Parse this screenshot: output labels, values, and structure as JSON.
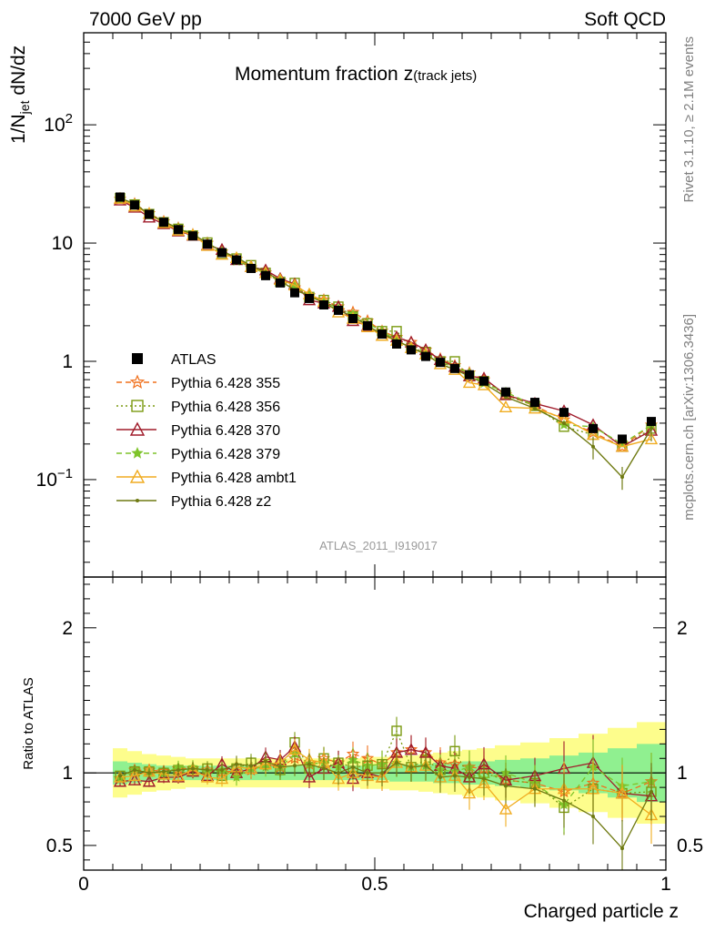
{
  "header": {
    "left": "7000 GeV pp",
    "right": "Soft QCD"
  },
  "side_labels": {
    "rivet": "Rivet 3.1.10, ≥ 2.1M events",
    "mcplots": "mcplots.cern.ch [arXiv:1306.3436]"
  },
  "chart_data": [
    {
      "type": "scatter",
      "title_main": "Momentum fraction",
      "title_sym": "z",
      "title_sub": "(track jets)",
      "ylabel_main": "1/N",
      "ylabel_sub": "jet",
      "ylabel_tail": " dN/dz",
      "watermark": "ATLAS_2011_I919017",
      "yscale": "log",
      "xlim": [
        0,
        1
      ],
      "ylim": [
        0.015,
        600
      ],
      "yticks": [
        {
          "v": 0.1,
          "base": "10",
          "exp": "−1"
        },
        {
          "v": 1,
          "base": "1",
          "exp": ""
        },
        {
          "v": 10,
          "base": "10",
          "exp": ""
        },
        {
          "v": 100,
          "base": "10",
          "exp": "2"
        }
      ],
      "legend_position": "center-left",
      "x": [
        0.0625,
        0.0875,
        0.1125,
        0.1375,
        0.1625,
        0.1875,
        0.2125,
        0.2375,
        0.2625,
        0.2875,
        0.3125,
        0.3375,
        0.3625,
        0.3875,
        0.4125,
        0.4375,
        0.4625,
        0.4875,
        0.5125,
        0.5375,
        0.5625,
        0.5875,
        0.6125,
        0.6375,
        0.6625,
        0.6875,
        0.725,
        0.775,
        0.825,
        0.875,
        0.925,
        0.975
      ],
      "series": [
        {
          "name": "ATLAS",
          "color": "#000000",
          "marker": "square-filled",
          "line": "none",
          "values": [
            24.5,
            21.0,
            17.5,
            15.0,
            13.0,
            11.5,
            9.8,
            8.3,
            7.2,
            6.1,
            5.3,
            4.6,
            3.8,
            3.4,
            3.0,
            2.7,
            2.3,
            2.0,
            1.7,
            1.4,
            1.25,
            1.1,
            0.98,
            0.87,
            0.77,
            0.68,
            0.55,
            0.45,
            0.37,
            0.27,
            0.22,
            0.31
          ]
        },
        {
          "name": "Pythia 6.428 355",
          "color": "#f0701c",
          "marker": "star-open",
          "line": "dashed",
          "values": [
            23.5,
            21.5,
            17.8,
            15.2,
            13.4,
            11.8,
            10.0,
            8.4,
            7.3,
            6.2,
            5.6,
            4.8,
            4.2,
            3.6,
            3.3,
            2.9,
            2.6,
            2.2,
            1.8,
            1.6,
            1.45,
            1.25,
            1.05,
            0.92,
            0.8,
            0.7,
            0.52,
            0.42,
            0.32,
            0.25,
            0.19,
            0.29
          ]
        },
        {
          "name": "Pythia 6.428 356",
          "color": "#7a9a10",
          "marker": "square-open",
          "line": "dotted",
          "values": [
            24.0,
            21.2,
            17.6,
            15.0,
            13.2,
            11.6,
            10.1,
            8.1,
            7.4,
            6.5,
            5.6,
            4.7,
            4.6,
            3.5,
            3.3,
            2.9,
            2.4,
            2.1,
            1.8,
            1.8,
            1.3,
            1.2,
            1.0,
            1.0,
            0.75,
            0.68,
            0.52,
            0.42,
            0.28,
            0.24,
            0.19,
            0.27
          ]
        },
        {
          "name": "Pythia 6.428 370",
          "color": "#a01b2a",
          "marker": "triangle-open",
          "line": "solid",
          "values": [
            23.0,
            20.0,
            16.5,
            14.5,
            12.6,
            11.6,
            9.6,
            8.8,
            7.2,
            6.3,
            5.9,
            5.0,
            4.5,
            3.3,
            3.1,
            2.9,
            2.2,
            2.0,
            1.65,
            1.6,
            1.45,
            1.25,
            1.03,
            0.9,
            0.75,
            0.72,
            0.52,
            0.44,
            0.38,
            0.29,
            0.19,
            0.26
          ]
        },
        {
          "name": "Pythia 6.428 379",
          "color": "#7ec42a",
          "marker": "star-filled",
          "line": "dashed",
          "values": [
            23.5,
            21.5,
            17.5,
            15.0,
            13.5,
            12.0,
            9.9,
            8.5,
            7.0,
            6.3,
            5.5,
            4.8,
            4.3,
            3.6,
            3.2,
            2.8,
            2.5,
            2.1,
            1.8,
            1.5,
            1.3,
            1.15,
            1.0,
            0.88,
            0.8,
            0.65,
            0.55,
            0.42,
            0.29,
            0.28,
            0.2,
            0.29
          ]
        },
        {
          "name": "Pythia 6.428 ambt1",
          "color": "#f0ac20",
          "marker": "triangle-open",
          "line": "solid",
          "values": [
            23.8,
            20.5,
            17.7,
            14.8,
            12.8,
            11.7,
            9.5,
            8.0,
            7.5,
            6.3,
            5.6,
            4.9,
            4.4,
            3.7,
            3.2,
            2.6,
            2.3,
            1.95,
            1.65,
            1.5,
            1.3,
            1.15,
            0.95,
            0.85,
            0.66,
            0.63,
            0.41,
            0.4,
            0.33,
            0.24,
            0.19,
            0.22
          ]
        },
        {
          "name": "Pythia 6.428 z2",
          "color": "#6f7a12",
          "marker": "dot",
          "line": "solid",
          "values": [
            24.0,
            21.5,
            17.5,
            15.2,
            13.2,
            11.9,
            10.0,
            8.5,
            7.6,
            6.4,
            5.7,
            4.8,
            4.0,
            3.6,
            3.1,
            2.7,
            2.4,
            2.0,
            1.7,
            1.5,
            1.3,
            1.15,
            0.95,
            0.85,
            0.75,
            0.65,
            0.5,
            0.4,
            0.3,
            0.19,
            0.105,
            0.27
          ]
        }
      ]
    },
    {
      "type": "scatter",
      "ylabel": "Ratio to ATLAS",
      "xlabel": "Charged particle z",
      "xlim": [
        0,
        1
      ],
      "ylim": [
        0.33,
        2.35
      ],
      "xticks": [
        {
          "v": 0,
          "label": "0"
        },
        {
          "v": 0.5,
          "label": "0.5"
        },
        {
          "v": 1,
          "label": "1"
        }
      ],
      "yticks": [
        {
          "v": 0.5,
          "label": "0.5"
        },
        {
          "v": 1,
          "label": "1"
        },
        {
          "v": 2,
          "label": "2"
        }
      ],
      "bands": {
        "inner_color": "#90f090",
        "outer_color": "#fdfd8c",
        "inner_halfwidth": [
          0.08,
          0.07,
          0.06,
          0.05,
          0.05,
          0.05,
          0.05,
          0.05,
          0.05,
          0.05,
          0.05,
          0.05,
          0.05,
          0.05,
          0.05,
          0.05,
          0.05,
          0.05,
          0.05,
          0.06,
          0.06,
          0.06,
          0.07,
          0.07,
          0.08,
          0.08,
          0.09,
          0.1,
          0.12,
          0.14,
          0.17,
          0.2
        ],
        "outer_halfwidth": [
          0.17,
          0.15,
          0.13,
          0.12,
          0.11,
          0.1,
          0.1,
          0.1,
          0.1,
          0.1,
          0.1,
          0.1,
          0.1,
          0.1,
          0.1,
          0.1,
          0.1,
          0.11,
          0.11,
          0.12,
          0.12,
          0.13,
          0.14,
          0.15,
          0.16,
          0.17,
          0.19,
          0.21,
          0.24,
          0.27,
          0.31,
          0.35
        ]
      },
      "series": [
        {
          "name": "Pythia 6.428 355",
          "values": [
            0.96,
            1.02,
            1.02,
            1.01,
            1.03,
            1.03,
            1.02,
            1.01,
            1.01,
            1.02,
            1.06,
            1.04,
            1.1,
            1.06,
            1.1,
            1.07,
            1.13,
            1.1,
            1.06,
            1.14,
            1.16,
            1.14,
            1.07,
            1.06,
            1.04,
            1.03,
            0.95,
            0.93,
            0.87,
            0.93,
            0.86,
            0.94
          ]
        },
        {
          "name": "Pythia 6.428 356",
          "values": [
            0.98,
            1.01,
            1.01,
            1.0,
            1.02,
            1.01,
            1.03,
            0.98,
            1.03,
            1.07,
            1.06,
            1.02,
            1.21,
            1.03,
            1.1,
            1.07,
            1.04,
            1.05,
            1.06,
            1.29,
            1.04,
            1.09,
            1.02,
            1.15,
            0.97,
            1.0,
            0.95,
            0.93,
            0.76,
            0.89,
            0.86,
            0.87
          ]
        },
        {
          "name": "Pythia 6.428 370",
          "values": [
            0.94,
            0.95,
            0.94,
            0.97,
            0.97,
            1.01,
            0.98,
            1.06,
            1.0,
            1.03,
            1.11,
            1.09,
            1.18,
            0.97,
            1.03,
            1.07,
            0.96,
            1.0,
            0.97,
            1.14,
            1.16,
            1.14,
            1.05,
            1.03,
            0.97,
            1.06,
            0.95,
            0.98,
            1.03,
            1.07,
            0.86,
            0.84
          ]
        },
        {
          "name": "Pythia 6.428 379",
          "values": [
            0.96,
            1.02,
            1.0,
            1.0,
            1.04,
            1.04,
            1.01,
            1.02,
            0.97,
            1.03,
            1.04,
            1.04,
            1.13,
            1.06,
            1.07,
            1.04,
            1.09,
            1.05,
            1.06,
            1.07,
            1.04,
            1.05,
            1.02,
            1.01,
            1.04,
            0.96,
            1.0,
            0.93,
            0.78,
            1.04,
            0.91,
            0.94
          ]
        },
        {
          "name": "Pythia 6.428 ambt1",
          "values": [
            0.97,
            0.98,
            1.01,
            0.99,
            0.98,
            1.02,
            0.97,
            0.96,
            1.04,
            1.03,
            1.06,
            1.07,
            1.16,
            1.09,
            1.07,
            0.96,
            1.0,
            0.98,
            0.97,
            1.07,
            1.04,
            1.05,
            0.97,
            0.98,
            0.86,
            0.93,
            0.75,
            0.89,
            0.89,
            0.89,
            0.86,
            0.71
          ]
        },
        {
          "name": "Pythia 6.428 z2",
          "values": [
            0.98,
            1.02,
            1.0,
            1.01,
            1.02,
            1.03,
            1.02,
            1.02,
            1.06,
            1.05,
            1.08,
            1.04,
            1.05,
            1.06,
            1.03,
            1.0,
            1.04,
            1.0,
            1.0,
            1.07,
            1.04,
            1.05,
            0.97,
            0.98,
            0.97,
            0.96,
            0.91,
            0.89,
            0.81,
            0.7,
            0.48,
            0.87
          ]
        }
      ]
    }
  ]
}
